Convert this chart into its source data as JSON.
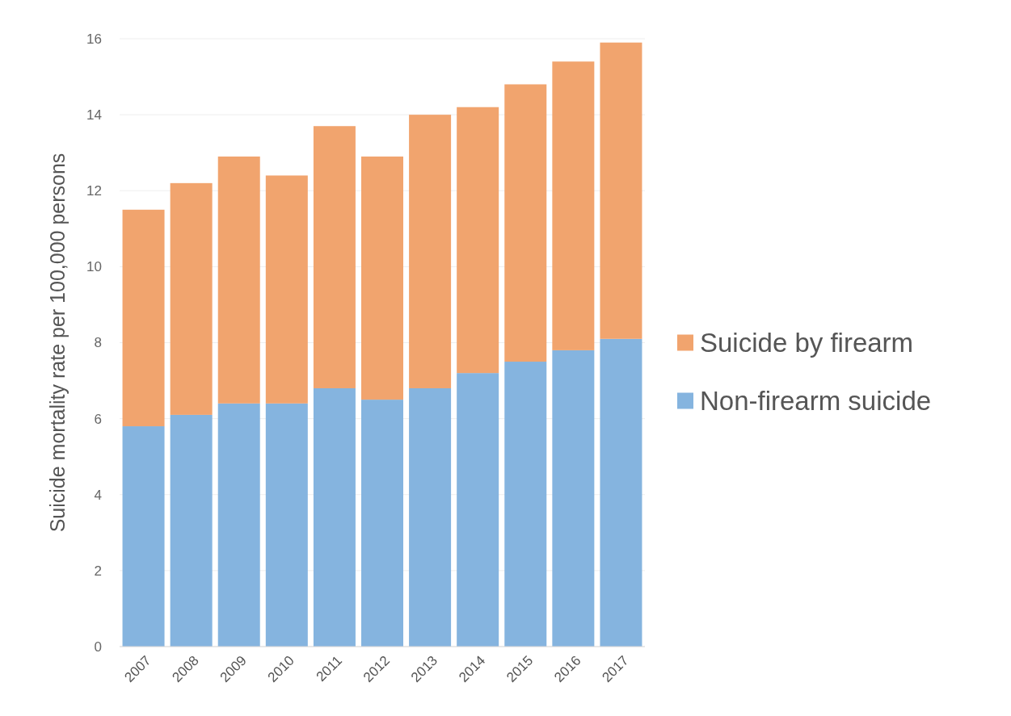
{
  "chart_data": {
    "type": "bar",
    "stacked": true,
    "ylabel": "Suicide mortality rate per 100,000 persons",
    "categories": [
      "2007",
      "2008",
      "2009",
      "2010",
      "2011",
      "2012",
      "2013",
      "2014",
      "2015",
      "2016",
      "2017"
    ],
    "series": [
      {
        "name": "Non-firearm suicide",
        "color": "#85b4df",
        "values": [
          5.8,
          6.1,
          6.4,
          6.4,
          6.8,
          6.5,
          6.8,
          7.2,
          7.5,
          7.8,
          8.1
        ]
      },
      {
        "name": "Suicide by firearm",
        "color": "#f1a46e",
        "values": [
          5.7,
          6.1,
          6.5,
          6.0,
          6.9,
          6.4,
          7.2,
          7.0,
          7.3,
          7.6,
          7.8
        ]
      }
    ],
    "ylim": [
      0,
      16
    ],
    "yticks": [
      0,
      2,
      4,
      6,
      8,
      10,
      12,
      14,
      16
    ],
    "grid": "y",
    "legend": "right"
  }
}
